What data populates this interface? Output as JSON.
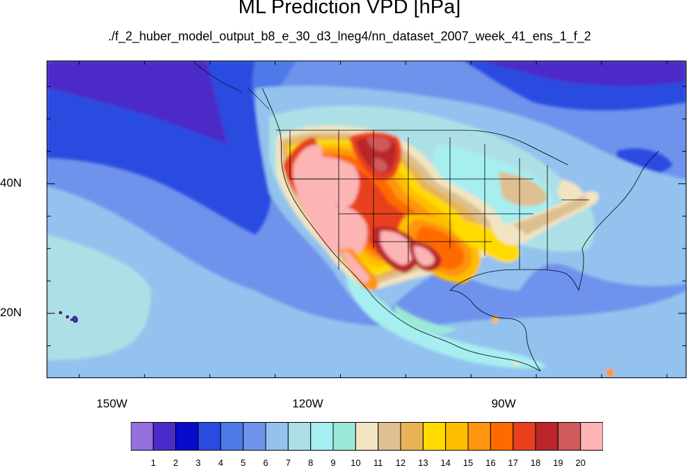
{
  "title": "ML Prediction VPD [hPa]",
  "subtitle": "./f_2_huber_model_output_b8_e_30_d3_lneg4/nn_dataset_2007_week_41_ens_1_f_2",
  "map": {
    "lon_range": [
      -160,
      -62
    ],
    "lat_range": [
      10,
      59
    ],
    "lat_ticks": [
      {
        "label": "40N",
        "value": 40
      },
      {
        "label": "20N",
        "value": 20
      }
    ],
    "lon_ticks": [
      {
        "label": "150W",
        "value": -150
      },
      {
        "label": "120W",
        "value": -120
      },
      {
        "label": "90W",
        "value": -90
      }
    ]
  },
  "colorbar": {
    "colors": [
      "#9370DB",
      "#4B2BC8",
      "#0A0ACD",
      "#2A4BE0",
      "#4E7AE8",
      "#6F93EC",
      "#93C2EE",
      "#ADE0E6",
      "#A6EEF0",
      "#9AE8D8",
      "#F2E4C0",
      "#DEC090",
      "#E8B455",
      "#FFDB00",
      "#FFBD00",
      "#FF9510",
      "#FF6A00",
      "#E8401E",
      "#B8262A",
      "#D05A5A",
      "#FCB4B4"
    ],
    "labels": [
      "1",
      "2",
      "3",
      "4",
      "5",
      "6",
      "7",
      "8",
      "9",
      "10",
      "11",
      "12",
      "13",
      "14",
      "15",
      "16",
      "17",
      "18",
      "19",
      "20"
    ]
  }
}
